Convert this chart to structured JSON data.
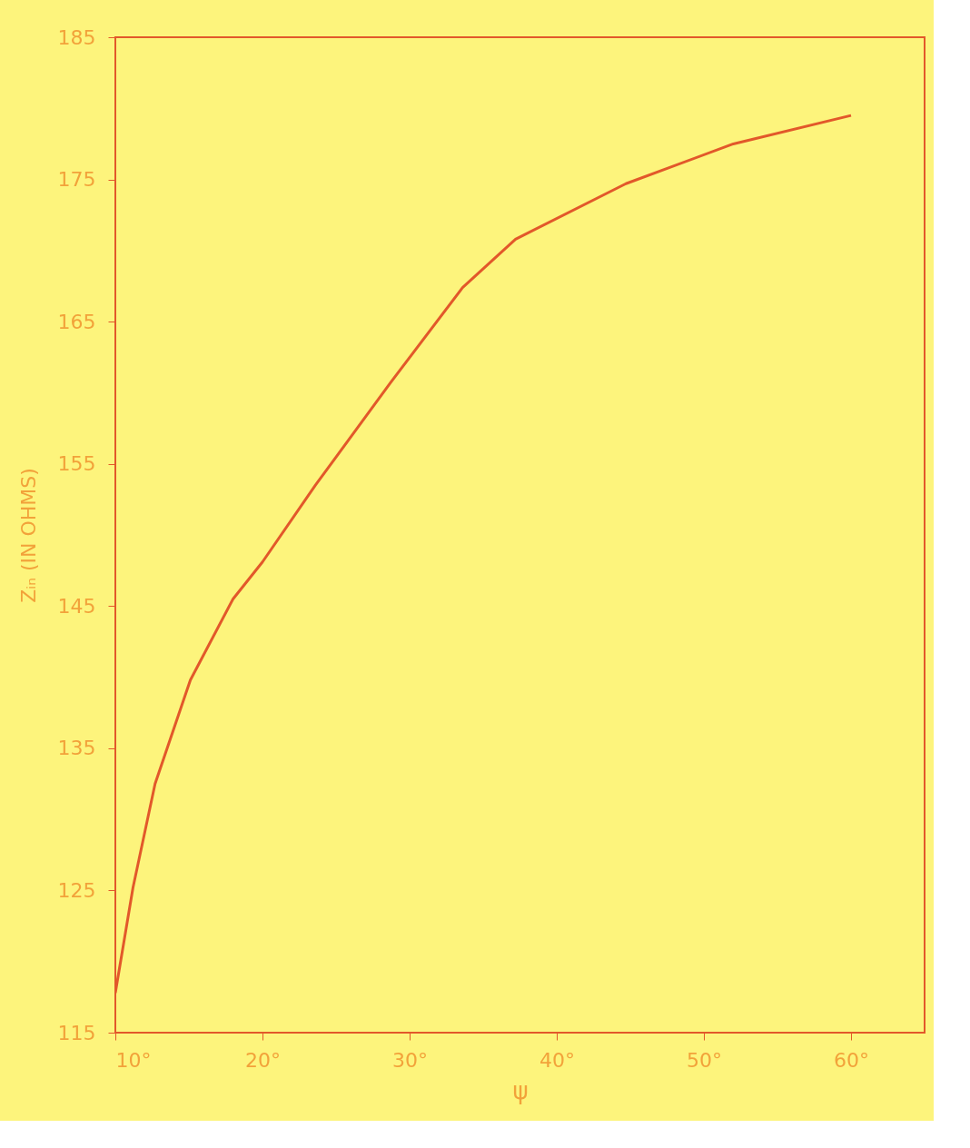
{
  "chart_data": {
    "type": "line",
    "xlabel": "ψ",
    "ylabel": "Zᵢₙ (IN OHMS)",
    "x": [
      10,
      11.2,
      12.7,
      15.1,
      18,
      20,
      23.6,
      28.7,
      33.6,
      37.2,
      44.7,
      52,
      60
    ],
    "series": [
      {
        "color": "#e2582a",
        "values": [
          117.8,
          125.2,
          132.5,
          139.8,
          145.5,
          148.1,
          153.5,
          160.7,
          167.4,
          170.8,
          174.7,
          177.5,
          179.5
        ]
      }
    ],
    "xlim": [
      10,
      65
    ],
    "xticks": [
      {
        "value": 10,
        "label": "10°"
      },
      {
        "value": 20,
        "label": "20°"
      },
      {
        "value": 30,
        "label": "30°"
      },
      {
        "value": 40,
        "label": "40°"
      },
      {
        "value": 50,
        "label": "50°"
      },
      {
        "value": 60,
        "label": "60°"
      }
    ],
    "ylim": [
      115,
      185
    ],
    "yticks": [
      115,
      125,
      135,
      145,
      155,
      165,
      175,
      185
    ],
    "grid": false,
    "marker": "none",
    "line_style": "solid"
  }
}
